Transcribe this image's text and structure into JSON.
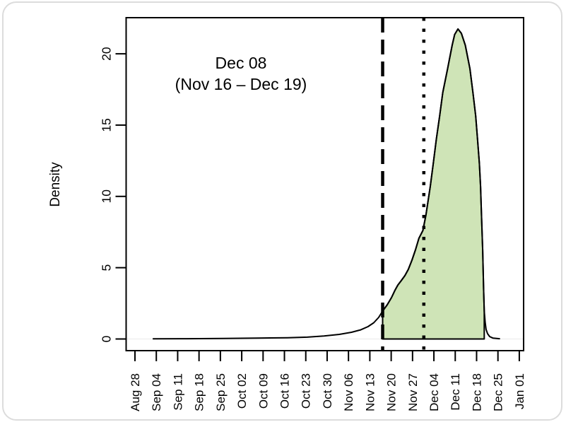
{
  "figure": {
    "kind": "density-plot",
    "background": "#ffffff",
    "card_border_color": "#dcdcdc"
  },
  "annotation": {
    "line1": "Dec 08",
    "line2": "(Nov 16 – Dec 19)"
  },
  "chart_data": {
    "type": "area",
    "title": "",
    "xlabel": "",
    "ylabel": "Density",
    "legend": "none",
    "grid": false,
    "y_ticks": [
      0,
      5,
      10,
      15,
      20
    ],
    "ylim": [
      0,
      22.5
    ],
    "x_tick_interval_days": 7,
    "x_tick_labels": [
      "Aug 28",
      "Sep 04",
      "Sep 11",
      "Sep 18",
      "Sep 25",
      "Oct 02",
      "Oct 09",
      "Oct 16",
      "Oct 23",
      "Oct 30",
      "Nov 06",
      "Nov 13",
      "Nov 20",
      "Nov 27",
      "Dec 04",
      "Dec 11",
      "Dec 18",
      "Dec 25",
      "Jan 01"
    ],
    "x_unit": "days since Aug 28",
    "curve_points": [
      [
        6,
        0.01
      ],
      [
        17,
        0.02
      ],
      [
        29,
        0.04
      ],
      [
        40,
        0.06
      ],
      [
        50,
        0.09
      ],
      [
        56.5,
        0.13
      ],
      [
        62,
        0.21
      ],
      [
        67,
        0.32
      ],
      [
        71,
        0.47
      ],
      [
        74,
        0.64
      ],
      [
        76.4,
        0.87
      ],
      [
        78.3,
        1.14
      ],
      [
        79.9,
        1.51
      ],
      [
        81.2,
        1.96
      ],
      [
        82.7,
        2.4
      ],
      [
        84.1,
        2.9
      ],
      [
        85.2,
        3.4
      ],
      [
        86.2,
        3.79
      ],
      [
        87.3,
        4.09
      ],
      [
        88.5,
        4.44
      ],
      [
        89.6,
        4.88
      ],
      [
        90.8,
        5.53
      ],
      [
        92,
        6.27
      ],
      [
        93.1,
        7.07
      ],
      [
        94.4,
        7.61
      ],
      [
        95.4,
        8.7
      ],
      [
        96.8,
        10.69
      ],
      [
        97.8,
        12.32
      ],
      [
        98.8,
        14.01
      ],
      [
        99.9,
        15.64
      ],
      [
        100.9,
        17.28
      ],
      [
        102.5,
        18.97
      ],
      [
        104,
        20.6
      ],
      [
        104.8,
        21.35
      ],
      [
        105.9,
        21.74
      ],
      [
        107,
        21.44
      ],
      [
        108.3,
        20.6
      ],
      [
        109.8,
        18.97
      ],
      [
        110.8,
        17.28
      ],
      [
        111.7,
        15.64
      ],
      [
        112.3,
        14.01
      ],
      [
        112.9,
        12.32
      ],
      [
        113.3,
        10.69
      ],
      [
        113.6,
        8.7
      ],
      [
        114,
        6.22
      ],
      [
        114.3,
        3.5
      ],
      [
        114.5,
        1.96
      ],
      [
        114.8,
        1.17
      ],
      [
        115.1,
        0.67
      ],
      [
        115.6,
        0.37
      ],
      [
        116.3,
        0.17
      ],
      [
        117.4,
        0.06
      ],
      [
        119.5,
        0.02
      ]
    ],
    "shaded_interval": {
      "from_label": "Nov 16",
      "to_label": "Dec 19",
      "from_day": 81.2,
      "to_day": 114.5
    },
    "vlines": [
      {
        "style": "dashed",
        "day": 81.2
      },
      {
        "style": "dotted",
        "day": 94.7
      }
    ],
    "colors": {
      "fill": "#cfe4b7",
      "line": "#000000",
      "zero_line": "#f0f0f0"
    }
  }
}
